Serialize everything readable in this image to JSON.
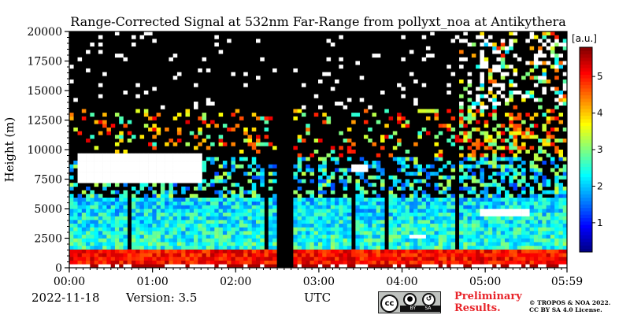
{
  "chart_data": {
    "type": "heatmap",
    "title": "Range-Corrected Signal at 532nm Far-Range from pollyxt_noa at Antikythera",
    "ylabel": "Height (m)",
    "xlabel": "UTC",
    "x_ticks": [
      "00:00",
      "01:00",
      "02:00",
      "03:00",
      "04:00",
      "05:00",
      "05:59"
    ],
    "x_tick_hours": [
      0,
      1,
      2,
      3,
      4,
      5,
      5.983
    ],
    "xlim_hours": [
      0,
      5.983
    ],
    "y_ticks": [
      "0",
      "2500",
      "5000",
      "7500",
      "10000",
      "12500",
      "15000",
      "17500",
      "20000"
    ],
    "y_tick_values": [
      0,
      2500,
      5000,
      7500,
      10000,
      12500,
      15000,
      17500,
      20000
    ],
    "ylim": [
      0,
      20000
    ],
    "colorbar": {
      "label": "[a.u.]",
      "ticks": [
        "1",
        "2",
        "3",
        "4",
        "5"
      ],
      "tick_values": [
        1,
        2,
        3,
        4,
        5
      ],
      "range": [
        0.2,
        5.8
      ],
      "colormap": "jet"
    },
    "features": [
      {
        "kind": "cloud",
        "t_start_hours": 0.12,
        "t_end_hours": 1.6,
        "h_bottom_m": 7300,
        "h_top_m": 9600
      },
      {
        "kind": "cloud",
        "t_start_hours": 3.4,
        "t_end_hours": 3.6,
        "h_bottom_m": 8200,
        "h_top_m": 8600
      },
      {
        "kind": "cloud",
        "t_start_hours": 4.95,
        "t_end_hours": 5.55,
        "h_bottom_m": 4400,
        "h_top_m": 4900
      },
      {
        "kind": "layer",
        "t_start_hours": 4.1,
        "t_end_hours": 4.3,
        "h_bottom_m": 2400,
        "h_top_m": 2700
      },
      {
        "kind": "no-data gap",
        "t_start_hours": 2.5,
        "t_end_hours": 2.68
      },
      {
        "kind": "boundary layer",
        "h_top_m": 1700
      }
    ]
  },
  "footer": {
    "date": "2022-11-18",
    "version": "Version: 3.5",
    "preliminary_line1": "Preliminary",
    "preliminary_line2": "Results.",
    "copyright_line1": "© TROPOS & NOA 2022.",
    "copyright_line2": "CC BY SA 4.0 License.",
    "license_badge": {
      "main": "cc",
      "by": "BY",
      "sa": "SA"
    }
  }
}
